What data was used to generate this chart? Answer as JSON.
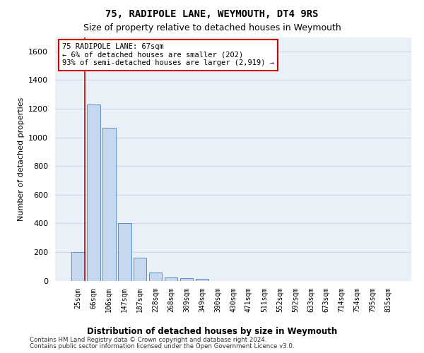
{
  "title1": "75, RADIPOLE LANE, WEYMOUTH, DT4 9RS",
  "title2": "Size of property relative to detached houses in Weymouth",
  "xlabel": "Distribution of detached houses by size in Weymouth",
  "ylabel": "Number of detached properties",
  "bar_labels": [
    "25sqm",
    "66sqm",
    "106sqm",
    "147sqm",
    "187sqm",
    "228sqm",
    "268sqm",
    "309sqm",
    "349sqm",
    "390sqm",
    "430sqm",
    "471sqm",
    "511sqm",
    "552sqm",
    "592sqm",
    "633sqm",
    "673sqm",
    "714sqm",
    "754sqm",
    "795sqm",
    "835sqm"
  ],
  "bar_values": [
    200,
    1230,
    1065,
    400,
    160,
    55,
    20,
    18,
    12,
    0,
    0,
    0,
    0,
    0,
    0,
    0,
    0,
    0,
    0,
    0,
    0
  ],
  "bar_color": "#c5d8f0",
  "bar_edge_color": "#5b8fc9",
  "annotation_line1": "75 RADIPOLE LANE: 67sqm",
  "annotation_line2": "← 6% of detached houses are smaller (202)",
  "annotation_line3": "93% of semi-detached houses are larger (2,919) →",
  "annotation_box_color": "#ffffff",
  "annotation_box_edge_color": "#cc0000",
  "vline_color": "#cc0000",
  "ylim": [
    0,
    1700
  ],
  "yticks": [
    0,
    200,
    400,
    600,
    800,
    1000,
    1200,
    1400,
    1600
  ],
  "grid_color": "#d0d8e8",
  "bg_color": "#eaf0f8",
  "footer1": "Contains HM Land Registry data © Crown copyright and database right 2024.",
  "footer2": "Contains public sector information licensed under the Open Government Licence v3.0."
}
